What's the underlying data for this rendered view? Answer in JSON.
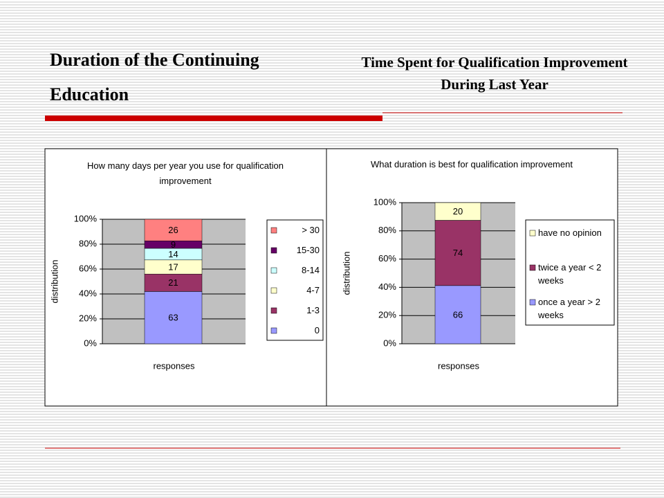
{
  "slide": {
    "title": "Duration of the Continuing Education",
    "subtitle": "Time Spent for Qualification Improvement During Last Year"
  },
  "chart_data": [
    {
      "type": "bar",
      "stacking": "percent",
      "title": "How many days per year you use for qualification improvement",
      "ylabel": "distribution",
      "xlabel": "responses",
      "categories": [
        null
      ],
      "series": [
        {
          "name": "0",
          "color": "#9999ff",
          "values": [
            63
          ]
        },
        {
          "name": "1-3",
          "color": "#993366",
          "values": [
            21
          ]
        },
        {
          "name": "4-7",
          "color": "#ffffcc",
          "values": [
            17
          ]
        },
        {
          "name": "8-14",
          "color": "#ccffff",
          "values": [
            14
          ]
        },
        {
          "name": "15-30",
          "color": "#660066",
          "values": [
            9
          ]
        },
        {
          "name": "> 30",
          "color": "#ff8080",
          "values": [
            26
          ]
        }
      ],
      "ylim": [
        0,
        100
      ],
      "yticks": [
        {
          "value": 0,
          "label": "0%"
        },
        {
          "value": 20,
          "label": "20%"
        },
        {
          "value": 40,
          "label": "40%"
        },
        {
          "value": 60,
          "label": "60%"
        },
        {
          "value": 80,
          "label": "80%"
        },
        {
          "value": 100,
          "label": "100%"
        }
      ],
      "grid": true,
      "legend": "right"
    },
    {
      "type": "bar",
      "stacking": "percent",
      "title": "What duration is best for qualification improvement",
      "ylabel": "distribution",
      "xlabel": "responses",
      "categories": [
        null
      ],
      "series": [
        {
          "name": "once a year > 2 weeks",
          "color": "#9999ff",
          "values": [
            66
          ]
        },
        {
          "name": "twice a year < 2 weeks",
          "color": "#993366",
          "values": [
            74
          ]
        },
        {
          "name": "have no opinion",
          "color": "#ffffcc",
          "values": [
            20
          ]
        }
      ],
      "ylim": [
        0,
        100
      ],
      "yticks": [
        {
          "value": 0,
          "label": "0%"
        },
        {
          "value": 20,
          "label": "20%"
        },
        {
          "value": 40,
          "label": "40%"
        },
        {
          "value": 60,
          "label": "60%"
        },
        {
          "value": 80,
          "label": "80%"
        },
        {
          "value": 100,
          "label": "100%"
        }
      ],
      "grid": true,
      "legend": "right"
    }
  ]
}
